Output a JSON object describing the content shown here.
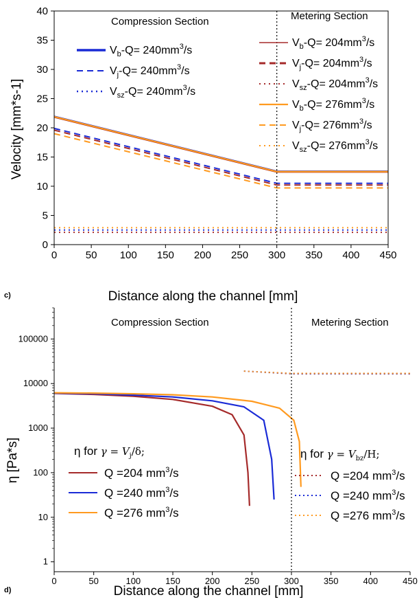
{
  "colors": {
    "red": "#a52a2a",
    "blue": "#1a2bd6",
    "orange": "#ff9a1f",
    "axis": "#000000"
  },
  "chart_data": [
    {
      "type": "line",
      "panel": "c)",
      "xlabel": "Distance along the channel [mm]",
      "ylabel": "Velocity [mm*s-1]",
      "xlim": [
        0,
        450
      ],
      "ylim": [
        0,
        40
      ],
      "xticks": [
        "0",
        "50",
        "100",
        "150",
        "200",
        "250",
        "300",
        "350",
        "400",
        "450"
      ],
      "yticks": [
        "0",
        "5",
        "10",
        "15",
        "20",
        "25",
        "30",
        "35",
        "40"
      ],
      "sections": {
        "left": "Compression Section",
        "right": "Metering Section",
        "boundary_x": 300
      },
      "legend_left": [
        {
          "main": "V",
          "sub": "b",
          "text": "-Q=",
          "value": " 240mm",
          "sup": "3",
          "tail": "/s"
        },
        {
          "main": "V",
          "sub": "j",
          "text": "-Q=",
          "value": " 240mm",
          "sup": "3",
          "tail": "/s"
        },
        {
          "main": "V",
          "sub": "sz",
          "text": "-Q=",
          "value": " 240mm",
          "sup": "3",
          "tail": "/s"
        }
      ],
      "legend_right": [
        {
          "main": "V",
          "sub": "b",
          "text": "-Q=",
          "value": " 204mm",
          "sup": "3",
          "tail": "/s"
        },
        {
          "main": "V",
          "sub": "j",
          "text": "-Q=",
          "value": " 204mm",
          "sup": "3",
          "tail": "/s"
        },
        {
          "main": "V",
          "sub": "sz",
          "text": "-Q=",
          "value": " 204mm",
          "sup": "3",
          "tail": "/s"
        },
        {
          "main": "V",
          "sub": "b",
          "text": "-Q=",
          "value": " 276mm",
          "sup": "3",
          "tail": "/s"
        },
        {
          "main": "V",
          "sub": "j",
          "text": "-Q=",
          "value": " 276mm",
          "sup": "3",
          "tail": "/s"
        },
        {
          "main": "V",
          "sub": "sz",
          "text": "-Q=",
          "value": " 276mm",
          "sup": "3",
          "tail": "/s"
        }
      ],
      "series": [
        {
          "key": "vb240",
          "color": "blue",
          "dash": "solid",
          "width": 1.6,
          "x": [
            0,
            300,
            450
          ],
          "y": [
            22.0,
            12.6,
            12.6
          ]
        },
        {
          "key": "vb204",
          "color": "red",
          "dash": "solid",
          "width": 1.6,
          "x": [
            0,
            300,
            450
          ],
          "y": [
            21.8,
            12.4,
            12.4
          ]
        },
        {
          "key": "vb276",
          "color": "orange",
          "dash": "solid",
          "width": 2.2,
          "x": [
            0,
            300,
            450
          ],
          "y": [
            21.9,
            12.5,
            12.5
          ]
        },
        {
          "key": "vj240",
          "color": "blue",
          "dash": "dash",
          "width": 2,
          "x": [
            0,
            300,
            450
          ],
          "y": [
            19.9,
            10.5,
            10.5
          ]
        },
        {
          "key": "vj204",
          "color": "red",
          "dash": "dash",
          "width": 2,
          "x": [
            0,
            300,
            450
          ],
          "y": [
            19.6,
            10.2,
            10.2
          ]
        },
        {
          "key": "vj276",
          "color": "orange",
          "dash": "dash",
          "width": 2,
          "x": [
            0,
            300,
            450
          ],
          "y": [
            19.0,
            9.7,
            9.7
          ]
        },
        {
          "key": "vsz276",
          "color": "orange",
          "dash": "dot",
          "width": 2,
          "x": [
            0,
            450
          ],
          "y": [
            2.9,
            2.9
          ]
        },
        {
          "key": "vsz240",
          "color": "blue",
          "dash": "dot",
          "width": 2,
          "x": [
            0,
            450
          ],
          "y": [
            2.5,
            2.5
          ]
        },
        {
          "key": "vsz204",
          "color": "red",
          "dash": "dot",
          "width": 2,
          "x": [
            0,
            450
          ],
          "y": [
            2.1,
            2.1
          ]
        }
      ]
    },
    {
      "type": "line",
      "panel": "d)",
      "xlabel": "Distance along the channel [mm]",
      "ylabel": "η [Pa*s]",
      "yscale": "log",
      "xlim": [
        0,
        450
      ],
      "ylim": [
        0.6,
        500000
      ],
      "xticks": [
        "0",
        "50",
        "100",
        "150",
        "200",
        "250",
        "300",
        "350",
        "400",
        "450"
      ],
      "yticks": [
        "1",
        "10",
        "100",
        "1000",
        "10000",
        "100000"
      ],
      "sections": {
        "left": "Compression Section",
        "right": "Metering Section",
        "boundary_x": 300
      },
      "legend_left_title": {
        "prefix": "η for ",
        "body": "γ = V",
        "sub": "j",
        "tail": "/δ;"
      },
      "legend_right_title": {
        "prefix": "η for ",
        "body": "γ = V",
        "sub": "bz",
        "tail": "/H;"
      },
      "legend_items": [
        {
          "label": "Q =204 mm",
          "sup": "3",
          "tail": "/s"
        },
        {
          "label": "Q =240 mm",
          "sup": "3",
          "tail": "/s"
        },
        {
          "label": "Q =276 mm",
          "sup": "3",
          "tail": "/s"
        }
      ],
      "series": [
        {
          "key": "eta204",
          "color": "red",
          "dash": "solid",
          "x": [
            0,
            50,
            100,
            150,
            200,
            225,
            240,
            245,
            247
          ],
          "y": [
            6000,
            5700,
            5200,
            4400,
            3100,
            2000,
            700,
            100,
            18
          ]
        },
        {
          "key": "eta240",
          "color": "blue",
          "dash": "solid",
          "x": [
            0,
            50,
            100,
            150,
            200,
            240,
            265,
            275,
            278
          ],
          "y": [
            6100,
            5900,
            5500,
            5000,
            4100,
            3000,
            1500,
            200,
            25
          ]
        },
        {
          "key": "eta276",
          "color": "orange",
          "dash": "solid",
          "x": [
            0,
            50,
            100,
            150,
            200,
            250,
            285,
            303,
            310,
            312
          ],
          "y": [
            6200,
            6100,
            5900,
            5600,
            5000,
            4000,
            2800,
            1500,
            500,
            48
          ]
        },
        {
          "key": "etab204",
          "color": "red",
          "dash": "dot",
          "x": [
            240,
            300,
            450
          ],
          "y": [
            19000,
            16500,
            16500
          ]
        },
        {
          "key": "etab240",
          "color": "blue",
          "dash": "dot",
          "x": [
            240,
            300,
            450
          ],
          "y": [
            19000,
            16800,
            16800
          ]
        },
        {
          "key": "etab276",
          "color": "orange",
          "dash": "dot",
          "x": [
            240,
            300,
            450
          ],
          "y": [
            19000,
            17000,
            17000
          ]
        }
      ]
    }
  ]
}
